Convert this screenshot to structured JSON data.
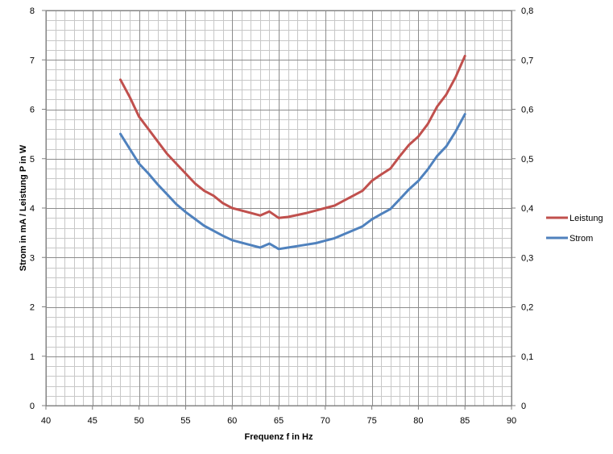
{
  "chart_data": {
    "type": "line",
    "xlabel": "Frequenz f in Hz",
    "ylabel": "Strom in mA / Leistung P in W",
    "xlim": [
      40,
      90
    ],
    "ylim": [
      0,
      8
    ],
    "y2lim": [
      0,
      0.8
    ],
    "x_ticks": [
      "40",
      "45",
      "50",
      "55",
      "60",
      "65",
      "70",
      "75",
      "80",
      "85",
      "90"
    ],
    "y_ticks": [
      "0",
      "1",
      "2",
      "3",
      "4",
      "5",
      "6",
      "7",
      "8"
    ],
    "y2_ticks": [
      "0",
      "0,1",
      "0,2",
      "0,3",
      "0,4",
      "0,5",
      "0,6",
      "0,7",
      "0,8"
    ],
    "grid": true,
    "legend_position": "right",
    "series": [
      {
        "name": "Leistung",
        "color": "#c0504d",
        "x": [
          48,
          49,
          50,
          51,
          52,
          53,
          54,
          55,
          56,
          57,
          58,
          59,
          60,
          61,
          62,
          63,
          64,
          65,
          66,
          67,
          68,
          69,
          70,
          71,
          72,
          73,
          74,
          75,
          76,
          77,
          78,
          79,
          80,
          81,
          82,
          83,
          84,
          85
        ],
        "y": [
          6.6,
          6.25,
          5.85,
          5.6,
          5.35,
          5.1,
          4.9,
          4.7,
          4.5,
          4.35,
          4.25,
          4.1,
          4.0,
          3.95,
          3.9,
          3.85,
          3.93,
          3.8,
          3.82,
          3.86,
          3.9,
          3.95,
          4.0,
          4.05,
          4.15,
          4.25,
          4.35,
          4.55,
          4.68,
          4.8,
          5.05,
          5.28,
          5.45,
          5.7,
          6.05,
          6.3,
          6.65,
          7.08
        ]
      },
      {
        "name": "Strom",
        "color": "#4f81bd",
        "x": [
          48,
          49,
          50,
          51,
          52,
          53,
          54,
          55,
          56,
          57,
          58,
          59,
          60,
          61,
          62,
          63,
          64,
          65,
          66,
          67,
          68,
          69,
          70,
          71,
          72,
          73,
          74,
          75,
          76,
          77,
          78,
          79,
          80,
          81,
          82,
          83,
          84,
          85
        ],
        "y": [
          5.5,
          5.2,
          4.9,
          4.7,
          4.48,
          4.28,
          4.08,
          3.92,
          3.78,
          3.64,
          3.54,
          3.44,
          3.35,
          3.3,
          3.25,
          3.2,
          3.28,
          3.17,
          3.2,
          3.23,
          3.26,
          3.29,
          3.34,
          3.39,
          3.47,
          3.55,
          3.63,
          3.77,
          3.88,
          3.98,
          4.18,
          4.38,
          4.55,
          4.78,
          5.05,
          5.25,
          5.55,
          5.9
        ]
      }
    ]
  }
}
